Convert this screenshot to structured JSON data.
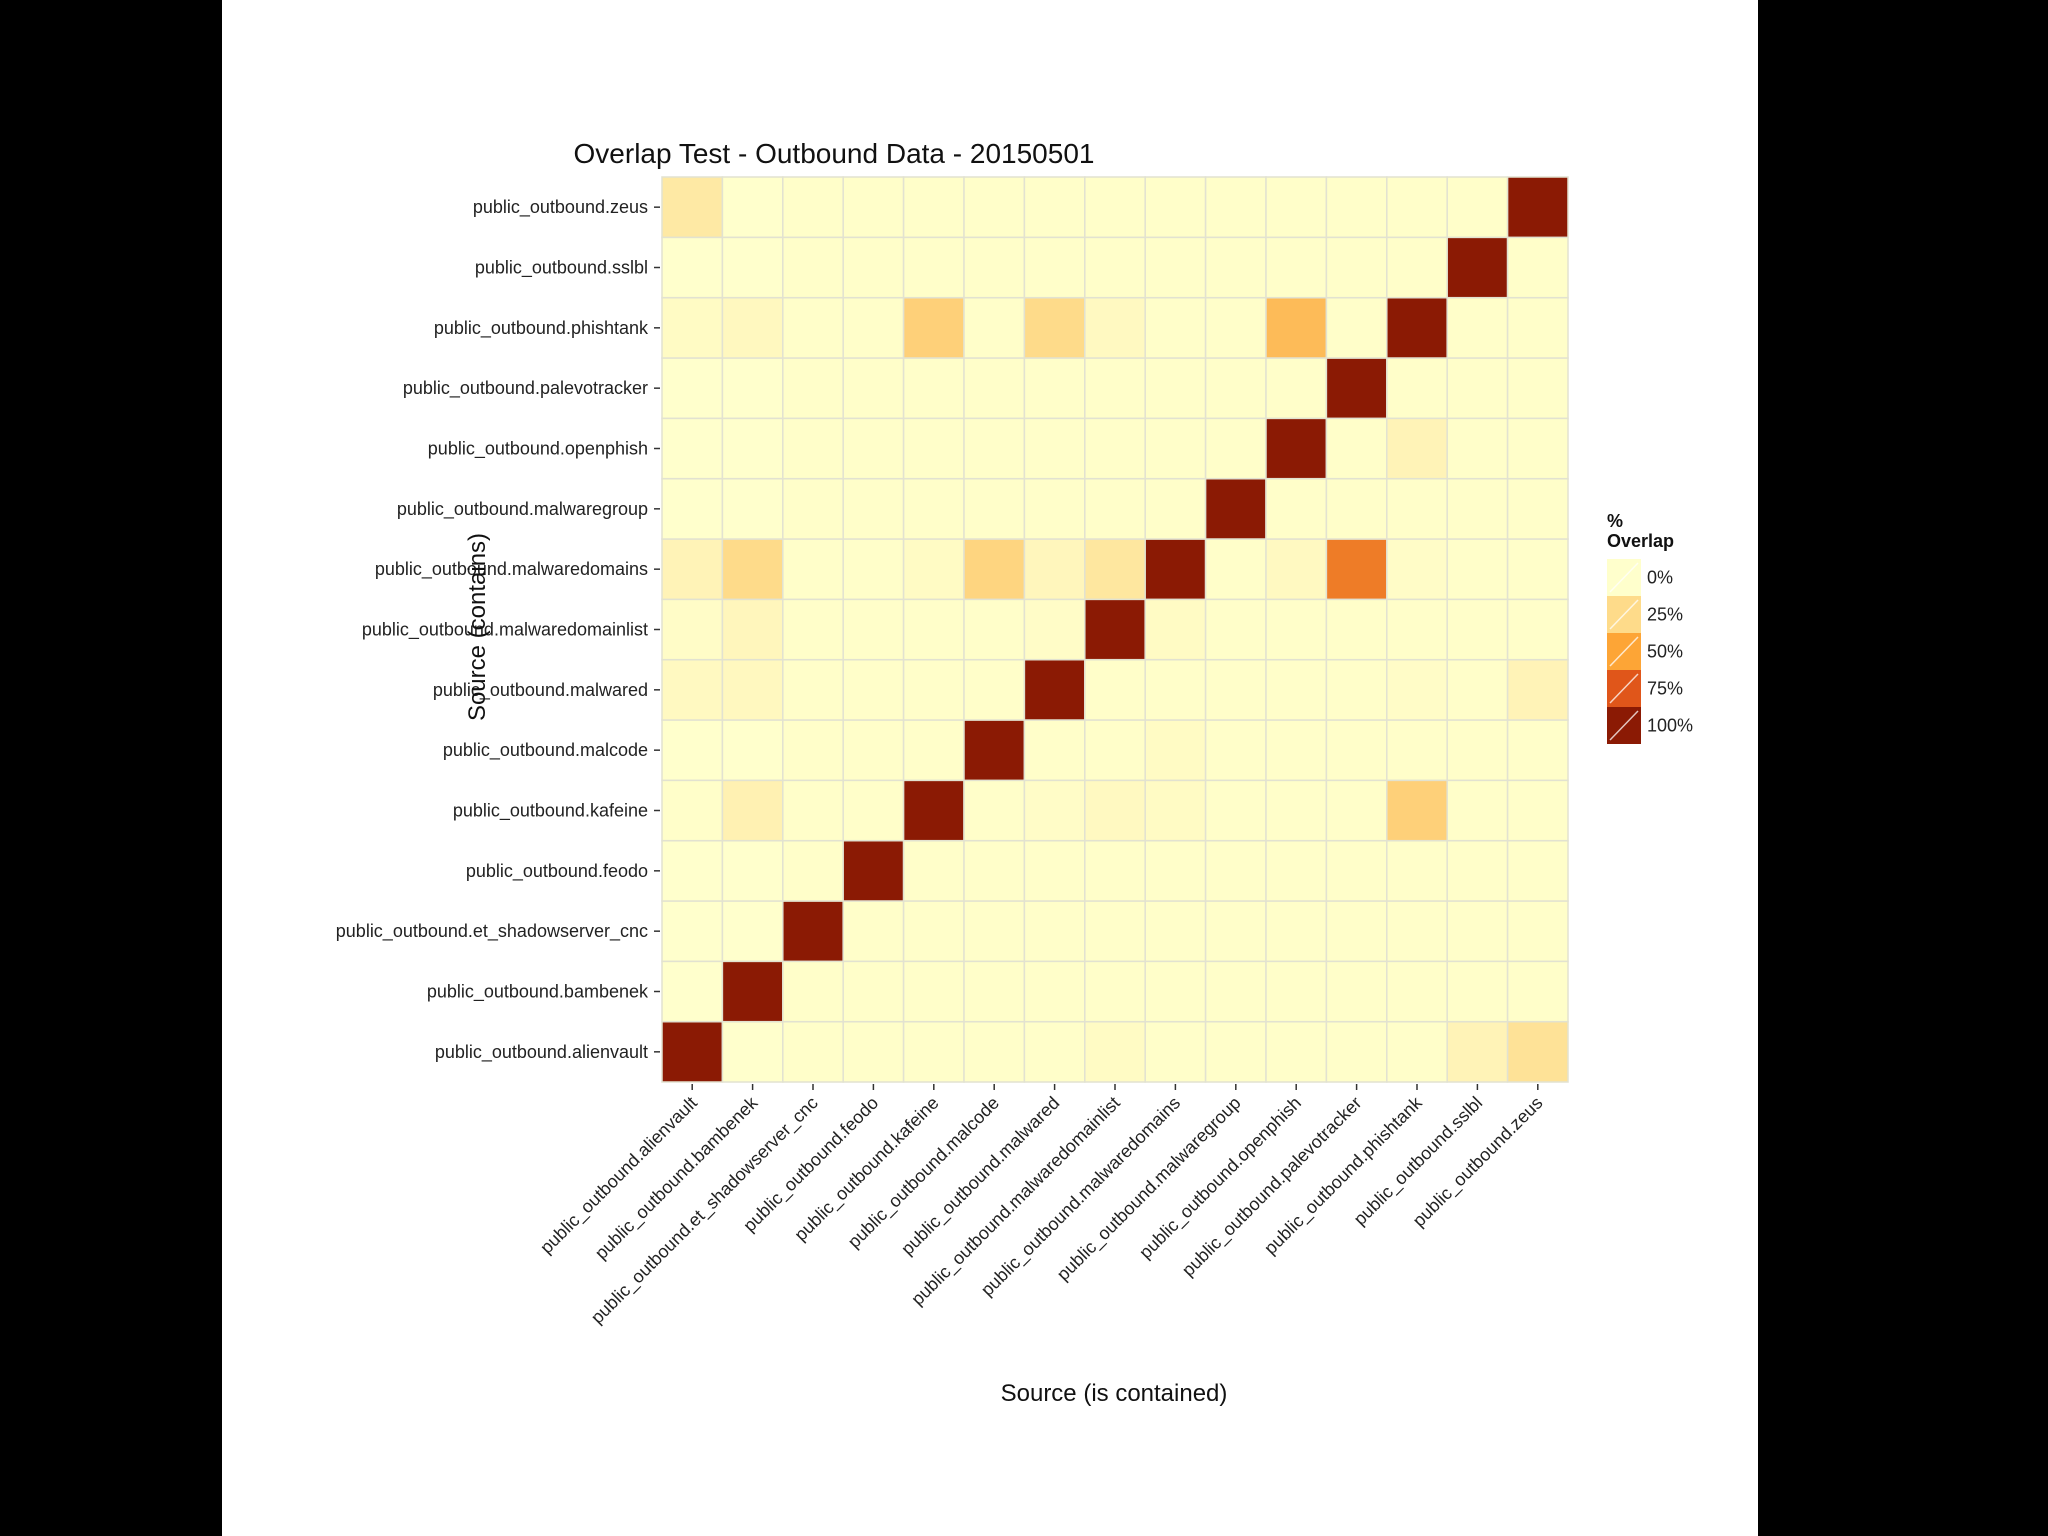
{
  "chart_data": {
    "type": "heatmap",
    "title": "Overlap Test - Outbound Data - 20150501",
    "xlabel": "Source (is contained)",
    "ylabel": "Source (contains)",
    "x_categories": [
      "public_outbound.alienvault",
      "public_outbound.bambenek",
      "public_outbound.et_shadowserver_cnc",
      "public_outbound.feodo",
      "public_outbound.kafeine",
      "public_outbound.malcode",
      "public_outbound.malwared",
      "public_outbound.malwaredomainlist",
      "public_outbound.malwaredomains",
      "public_outbound.malwaregroup",
      "public_outbound.openphish",
      "public_outbound.palevotracker",
      "public_outbound.phishtank",
      "public_outbound.sslbl",
      "public_outbound.zeus"
    ],
    "y_categories": [
      "public_outbound.alienvault",
      "public_outbound.bambenek",
      "public_outbound.et_shadowserver_cnc",
      "public_outbound.feodo",
      "public_outbound.kafeine",
      "public_outbound.malcode",
      "public_outbound.malwared",
      "public_outbound.malwaredomainlist",
      "public_outbound.malwaredomains",
      "public_outbound.malwaregroup",
      "public_outbound.openphish",
      "public_outbound.palevotracker",
      "public_outbound.phishtank",
      "public_outbound.sslbl",
      "public_outbound.zeus"
    ],
    "values": [
      [
        100,
        0,
        1,
        1,
        1,
        1,
        1,
        3,
        1,
        1,
        1,
        1,
        1,
        8,
        20
      ],
      [
        0,
        100,
        1,
        1,
        1,
        1,
        1,
        1,
        1,
        1,
        1,
        1,
        1,
        1,
        1
      ],
      [
        0,
        0,
        100,
        1,
        1,
        1,
        1,
        1,
        1,
        1,
        1,
        1,
        1,
        1,
        1
      ],
      [
        0,
        0,
        1,
        100,
        1,
        1,
        1,
        1,
        1,
        1,
        1,
        1,
        1,
        1,
        1
      ],
      [
        1,
        10,
        1,
        1,
        100,
        1,
        2,
        4,
        3,
        1,
        1,
        1,
        30,
        1,
        1
      ],
      [
        0,
        0,
        1,
        1,
        1,
        100,
        1,
        1,
        3,
        1,
        1,
        1,
        1,
        1,
        1
      ],
      [
        4,
        5,
        1,
        1,
        1,
        1,
        100,
        1,
        1,
        1,
        1,
        1,
        2,
        1,
        8
      ],
      [
        2,
        6,
        1,
        1,
        1,
        1,
        2,
        100,
        3,
        1,
        1,
        1,
        1,
        1,
        1
      ],
      [
        8,
        25,
        1,
        1,
        3,
        28,
        6,
        17,
        100,
        1,
        4,
        63,
        2,
        1,
        1
      ],
      [
        0,
        0,
        1,
        1,
        1,
        1,
        1,
        1,
        1,
        100,
        1,
        1,
        1,
        1,
        1
      ],
      [
        0,
        0,
        1,
        1,
        1,
        1,
        1,
        1,
        1,
        1,
        100,
        1,
        8,
        1,
        1
      ],
      [
        0,
        0,
        1,
        1,
        1,
        1,
        1,
        1,
        1,
        1,
        1,
        100,
        1,
        1,
        1
      ],
      [
        3,
        5,
        1,
        1,
        30,
        1,
        25,
        4,
        1,
        1,
        40,
        1,
        100,
        1,
        1
      ],
      [
        0,
        0,
        1,
        1,
        1,
        1,
        1,
        1,
        1,
        1,
        1,
        1,
        1,
        100,
        1
      ],
      [
        15,
        0,
        1,
        1,
        1,
        1,
        1,
        1,
        1,
        1,
        1,
        1,
        1,
        1,
        100
      ]
    ],
    "value_range": [
      0,
      100
    ],
    "grid": true,
    "legend": {
      "title_lines": [
        "%",
        "Overlap"
      ],
      "entries": [
        "0%",
        "25%",
        "50%",
        "75%",
        "100%"
      ],
      "placement": "right"
    },
    "colors": {
      "scale": [
        "#FFFFCC",
        "#FEDB8A",
        "#FDA536",
        "#E0561A",
        "#8B1A04"
      ],
      "grid_line": "#E2E2D0",
      "background": "#ffffff"
    }
  }
}
